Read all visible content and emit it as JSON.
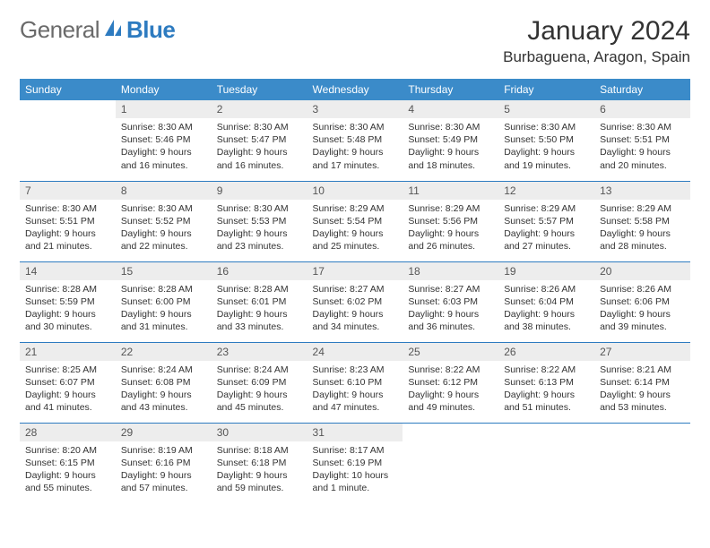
{
  "logo": {
    "general": "General",
    "blue": "Blue"
  },
  "title": "January 2024",
  "location": "Burbaguena, Aragon, Spain",
  "colors": {
    "header_bg": "#3b8bc9",
    "header_text": "#ffffff",
    "rule": "#2d7bc0",
    "daynum_bg": "#ededed",
    "text": "#333333",
    "logo_gray": "#6a6a6a",
    "logo_blue": "#2d7bc0"
  },
  "weekdays": [
    "Sunday",
    "Monday",
    "Tuesday",
    "Wednesday",
    "Thursday",
    "Friday",
    "Saturday"
  ],
  "weeks": [
    [
      null,
      {
        "n": "1",
        "sr": "Sunrise: 8:30 AM",
        "ss": "Sunset: 5:46 PM",
        "dl": "Daylight: 9 hours and 16 minutes."
      },
      {
        "n": "2",
        "sr": "Sunrise: 8:30 AM",
        "ss": "Sunset: 5:47 PM",
        "dl": "Daylight: 9 hours and 16 minutes."
      },
      {
        "n": "3",
        "sr": "Sunrise: 8:30 AM",
        "ss": "Sunset: 5:48 PM",
        "dl": "Daylight: 9 hours and 17 minutes."
      },
      {
        "n": "4",
        "sr": "Sunrise: 8:30 AM",
        "ss": "Sunset: 5:49 PM",
        "dl": "Daylight: 9 hours and 18 minutes."
      },
      {
        "n": "5",
        "sr": "Sunrise: 8:30 AM",
        "ss": "Sunset: 5:50 PM",
        "dl": "Daylight: 9 hours and 19 minutes."
      },
      {
        "n": "6",
        "sr": "Sunrise: 8:30 AM",
        "ss": "Sunset: 5:51 PM",
        "dl": "Daylight: 9 hours and 20 minutes."
      }
    ],
    [
      {
        "n": "7",
        "sr": "Sunrise: 8:30 AM",
        "ss": "Sunset: 5:51 PM",
        "dl": "Daylight: 9 hours and 21 minutes."
      },
      {
        "n": "8",
        "sr": "Sunrise: 8:30 AM",
        "ss": "Sunset: 5:52 PM",
        "dl": "Daylight: 9 hours and 22 minutes."
      },
      {
        "n": "9",
        "sr": "Sunrise: 8:30 AM",
        "ss": "Sunset: 5:53 PM",
        "dl": "Daylight: 9 hours and 23 minutes."
      },
      {
        "n": "10",
        "sr": "Sunrise: 8:29 AM",
        "ss": "Sunset: 5:54 PM",
        "dl": "Daylight: 9 hours and 25 minutes."
      },
      {
        "n": "11",
        "sr": "Sunrise: 8:29 AM",
        "ss": "Sunset: 5:56 PM",
        "dl": "Daylight: 9 hours and 26 minutes."
      },
      {
        "n": "12",
        "sr": "Sunrise: 8:29 AM",
        "ss": "Sunset: 5:57 PM",
        "dl": "Daylight: 9 hours and 27 minutes."
      },
      {
        "n": "13",
        "sr": "Sunrise: 8:29 AM",
        "ss": "Sunset: 5:58 PM",
        "dl": "Daylight: 9 hours and 28 minutes."
      }
    ],
    [
      {
        "n": "14",
        "sr": "Sunrise: 8:28 AM",
        "ss": "Sunset: 5:59 PM",
        "dl": "Daylight: 9 hours and 30 minutes."
      },
      {
        "n": "15",
        "sr": "Sunrise: 8:28 AM",
        "ss": "Sunset: 6:00 PM",
        "dl": "Daylight: 9 hours and 31 minutes."
      },
      {
        "n": "16",
        "sr": "Sunrise: 8:28 AM",
        "ss": "Sunset: 6:01 PM",
        "dl": "Daylight: 9 hours and 33 minutes."
      },
      {
        "n": "17",
        "sr": "Sunrise: 8:27 AM",
        "ss": "Sunset: 6:02 PM",
        "dl": "Daylight: 9 hours and 34 minutes."
      },
      {
        "n": "18",
        "sr": "Sunrise: 8:27 AM",
        "ss": "Sunset: 6:03 PM",
        "dl": "Daylight: 9 hours and 36 minutes."
      },
      {
        "n": "19",
        "sr": "Sunrise: 8:26 AM",
        "ss": "Sunset: 6:04 PM",
        "dl": "Daylight: 9 hours and 38 minutes."
      },
      {
        "n": "20",
        "sr": "Sunrise: 8:26 AM",
        "ss": "Sunset: 6:06 PM",
        "dl": "Daylight: 9 hours and 39 minutes."
      }
    ],
    [
      {
        "n": "21",
        "sr": "Sunrise: 8:25 AM",
        "ss": "Sunset: 6:07 PM",
        "dl": "Daylight: 9 hours and 41 minutes."
      },
      {
        "n": "22",
        "sr": "Sunrise: 8:24 AM",
        "ss": "Sunset: 6:08 PM",
        "dl": "Daylight: 9 hours and 43 minutes."
      },
      {
        "n": "23",
        "sr": "Sunrise: 8:24 AM",
        "ss": "Sunset: 6:09 PM",
        "dl": "Daylight: 9 hours and 45 minutes."
      },
      {
        "n": "24",
        "sr": "Sunrise: 8:23 AM",
        "ss": "Sunset: 6:10 PM",
        "dl": "Daylight: 9 hours and 47 minutes."
      },
      {
        "n": "25",
        "sr": "Sunrise: 8:22 AM",
        "ss": "Sunset: 6:12 PM",
        "dl": "Daylight: 9 hours and 49 minutes."
      },
      {
        "n": "26",
        "sr": "Sunrise: 8:22 AM",
        "ss": "Sunset: 6:13 PM",
        "dl": "Daylight: 9 hours and 51 minutes."
      },
      {
        "n": "27",
        "sr": "Sunrise: 8:21 AM",
        "ss": "Sunset: 6:14 PM",
        "dl": "Daylight: 9 hours and 53 minutes."
      }
    ],
    [
      {
        "n": "28",
        "sr": "Sunrise: 8:20 AM",
        "ss": "Sunset: 6:15 PM",
        "dl": "Daylight: 9 hours and 55 minutes."
      },
      {
        "n": "29",
        "sr": "Sunrise: 8:19 AM",
        "ss": "Sunset: 6:16 PM",
        "dl": "Daylight: 9 hours and 57 minutes."
      },
      {
        "n": "30",
        "sr": "Sunrise: 8:18 AM",
        "ss": "Sunset: 6:18 PM",
        "dl": "Daylight: 9 hours and 59 minutes."
      },
      {
        "n": "31",
        "sr": "Sunrise: 8:17 AM",
        "ss": "Sunset: 6:19 PM",
        "dl": "Daylight: 10 hours and 1 minute."
      },
      null,
      null,
      null
    ]
  ]
}
